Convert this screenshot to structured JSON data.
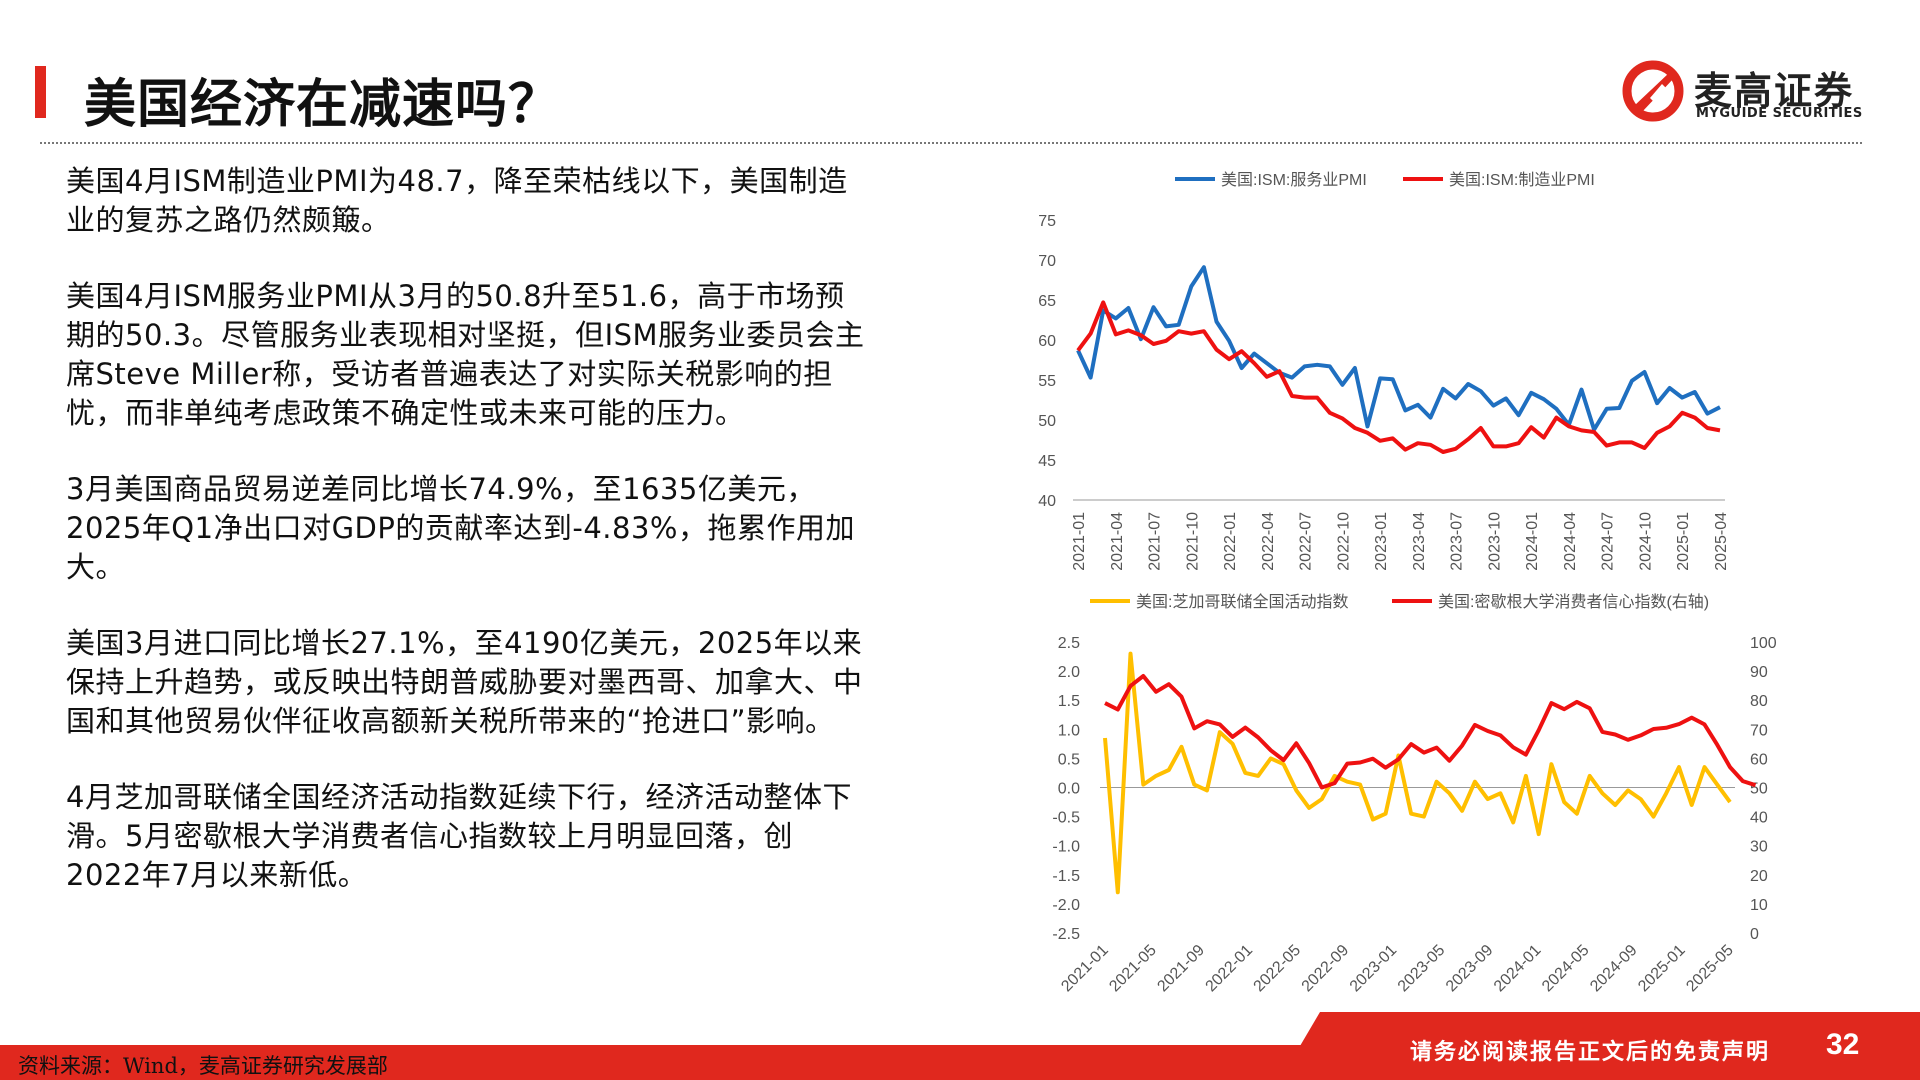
{
  "header": {
    "title": "美国经济在减速吗？",
    "logo_name": "麦高证券",
    "logo_sub": "MYGUIDE SECURITIES"
  },
  "paragraphs": [
    "美国4月ISM制造业PMI为48.7，降至荣枯线以下，美国制造业的复苏之路仍然颇簸。",
    "美国4月ISM服务业PMI从3月的50.8升至51.6，高于市场预期的50.3。尽管服务业表现相对坚挺，但ISM服务业委员会主席Steve Miller称，受访者普遍表达了对实际关税影响的担忧，而非单纯考虑政策不确定性或未来可能的压力。",
    "3月美国商品贸易逆差同比增长74.9%，至1635亿美元，2025年Q1净出口对GDP的贡献率达到-4.83%，拖累作用加大。",
    "美国3月进口同比增长27.1%，至4190亿美元，2025年以来保持上升趋势，或反映出特朗普威胁要对墨西哥、加拿大、中国和其他贸易伙伴征收高额新关税所带来的“抢进口”影响。",
    "4月芝加哥联储全国经济活动指数延续下行，经济活动整体下滑。5月密歇根大学消费者信心指数较上月明显回落，创2022年7月以来新低。"
  ],
  "footer": {
    "source": "资料来源：Wind，麦高证券研究发展部",
    "disclaimer": "请务必阅读报告正文后的免责声明",
    "page_number": "32"
  },
  "colors": {
    "accent": "#e0281e",
    "blue": "#1f6fc0",
    "red": "#ee1111",
    "yellow": "#ffbf00"
  },
  "chart_data": [
    {
      "type": "line",
      "ylim": [
        40,
        75
      ],
      "yticks": [
        "40",
        "45",
        "50",
        "55",
        "60",
        "65",
        "70",
        "75"
      ],
      "xticks": [
        "2021-01",
        "2021-04",
        "2021-07",
        "2021-10",
        "2022-01",
        "2022-04",
        "2022-07",
        "2022-10",
        "2023-01",
        "2023-04",
        "2023-07",
        "2023-10",
        "2024-01",
        "2024-04",
        "2024-07",
        "2024-10",
        "2025-01",
        "2025-04"
      ],
      "legend_position": "top",
      "series": [
        {
          "name": "美国:ISM:服务业PMI",
          "color": "#1f6fc0",
          "values": [
            58.7,
            55.3,
            63.7,
            62.7,
            64.0,
            60.1,
            64.1,
            61.7,
            61.9,
            66.7,
            69.1,
            62.3,
            59.9,
            56.5,
            58.3,
            57.1,
            55.9,
            55.3,
            56.7,
            56.9,
            56.7,
            54.4,
            56.5,
            49.2,
            55.2,
            55.1,
            51.2,
            51.9,
            50.3,
            53.9,
            52.7,
            54.5,
            53.6,
            51.8,
            52.7,
            50.6,
            53.4,
            52.6,
            51.4,
            49.4,
            53.8,
            48.8,
            51.4,
            51.5,
            54.9,
            56.0,
            52.1,
            54.0,
            52.8,
            53.5,
            50.8,
            51.6
          ]
        },
        {
          "name": "美国:ISM:制造业PMI",
          "color": "#ee1111",
          "values": [
            58.7,
            60.8,
            64.7,
            60.7,
            61.2,
            60.6,
            59.5,
            59.9,
            61.1,
            60.8,
            61.1,
            58.8,
            57.6,
            58.6,
            57.1,
            55.4,
            56.1,
            53.0,
            52.8,
            52.8,
            50.9,
            50.2,
            49.0,
            48.4,
            47.4,
            47.7,
            46.3,
            47.1,
            46.9,
            46.0,
            46.4,
            47.6,
            49.0,
            46.7,
            46.7,
            47.1,
            49.1,
            47.8,
            50.3,
            49.2,
            48.7,
            48.5,
            46.8,
            47.2,
            47.2,
            46.5,
            48.4,
            49.2,
            50.9,
            50.3,
            49.0,
            48.7
          ]
        }
      ]
    },
    {
      "type": "line",
      "ylim": [
        -2.5,
        2.5
      ],
      "y2lim": [
        0,
        100
      ],
      "yticks": [
        "-2.5",
        "-2.0",
        "-1.5",
        "-1.0",
        "-0.5",
        "0.0",
        "0.5",
        "1.0",
        "1.5",
        "2.0",
        "2.5"
      ],
      "y2ticks": [
        "0",
        "10",
        "20",
        "30",
        "40",
        "50",
        "60",
        "70",
        "80",
        "90",
        "100"
      ],
      "xticks": [
        "2021-01",
        "2021-05",
        "2021-09",
        "2022-01",
        "2022-05",
        "2022-09",
        "2023-01",
        "2023-05",
        "2023-09",
        "2024-01",
        "2024-05",
        "2024-09",
        "2025-01",
        "2025-05"
      ],
      "legend_position": "top",
      "series": [
        {
          "name": "美国:芝加哥联储全国活动指数",
          "color": "#ffbf00",
          "axis": "left",
          "values": [
            0.85,
            -1.8,
            2.3,
            0.05,
            0.2,
            0.3,
            0.7,
            0.05,
            -0.05,
            0.95,
            0.75,
            0.25,
            0.2,
            0.5,
            0.4,
            -0.05,
            -0.35,
            -0.2,
            0.2,
            0.1,
            0.05,
            -0.55,
            -0.45,
            0.55,
            -0.45,
            -0.5,
            0.1,
            -0.1,
            -0.4,
            0.1,
            -0.2,
            -0.1,
            -0.6,
            0.2,
            -0.8,
            0.4,
            -0.25,
            -0.45,
            0.2,
            -0.1,
            -0.3,
            -0.05,
            -0.2,
            -0.5,
            -0.1,
            0.35,
            -0.3,
            0.35,
            0.05,
            -0.25
          ]
        },
        {
          "name": "美国:密歇根大学消费者信心指数(右轴)",
          "color": "#ee1111",
          "axis": "right",
          "values": [
            79.0,
            76.8,
            84.9,
            88.3,
            82.9,
            85.5,
            81.2,
            70.3,
            72.8,
            71.7,
            67.4,
            70.6,
            67.2,
            62.8,
            59.4,
            65.2,
            58.4,
            50.0,
            51.5,
            58.2,
            58.6,
            59.9,
            56.8,
            59.7,
            64.9,
            62.0,
            63.7,
            59.2,
            64.4,
            71.5,
            69.4,
            67.9,
            63.8,
            61.3,
            69.7,
            79.0,
            76.9,
            79.4,
            77.2,
            69.1,
            68.2,
            66.4,
            67.9,
            70.1,
            70.5,
            71.8,
            74.0,
            71.7,
            64.7,
            57.0,
            52.2,
            50.8
          ]
        }
      ]
    }
  ]
}
